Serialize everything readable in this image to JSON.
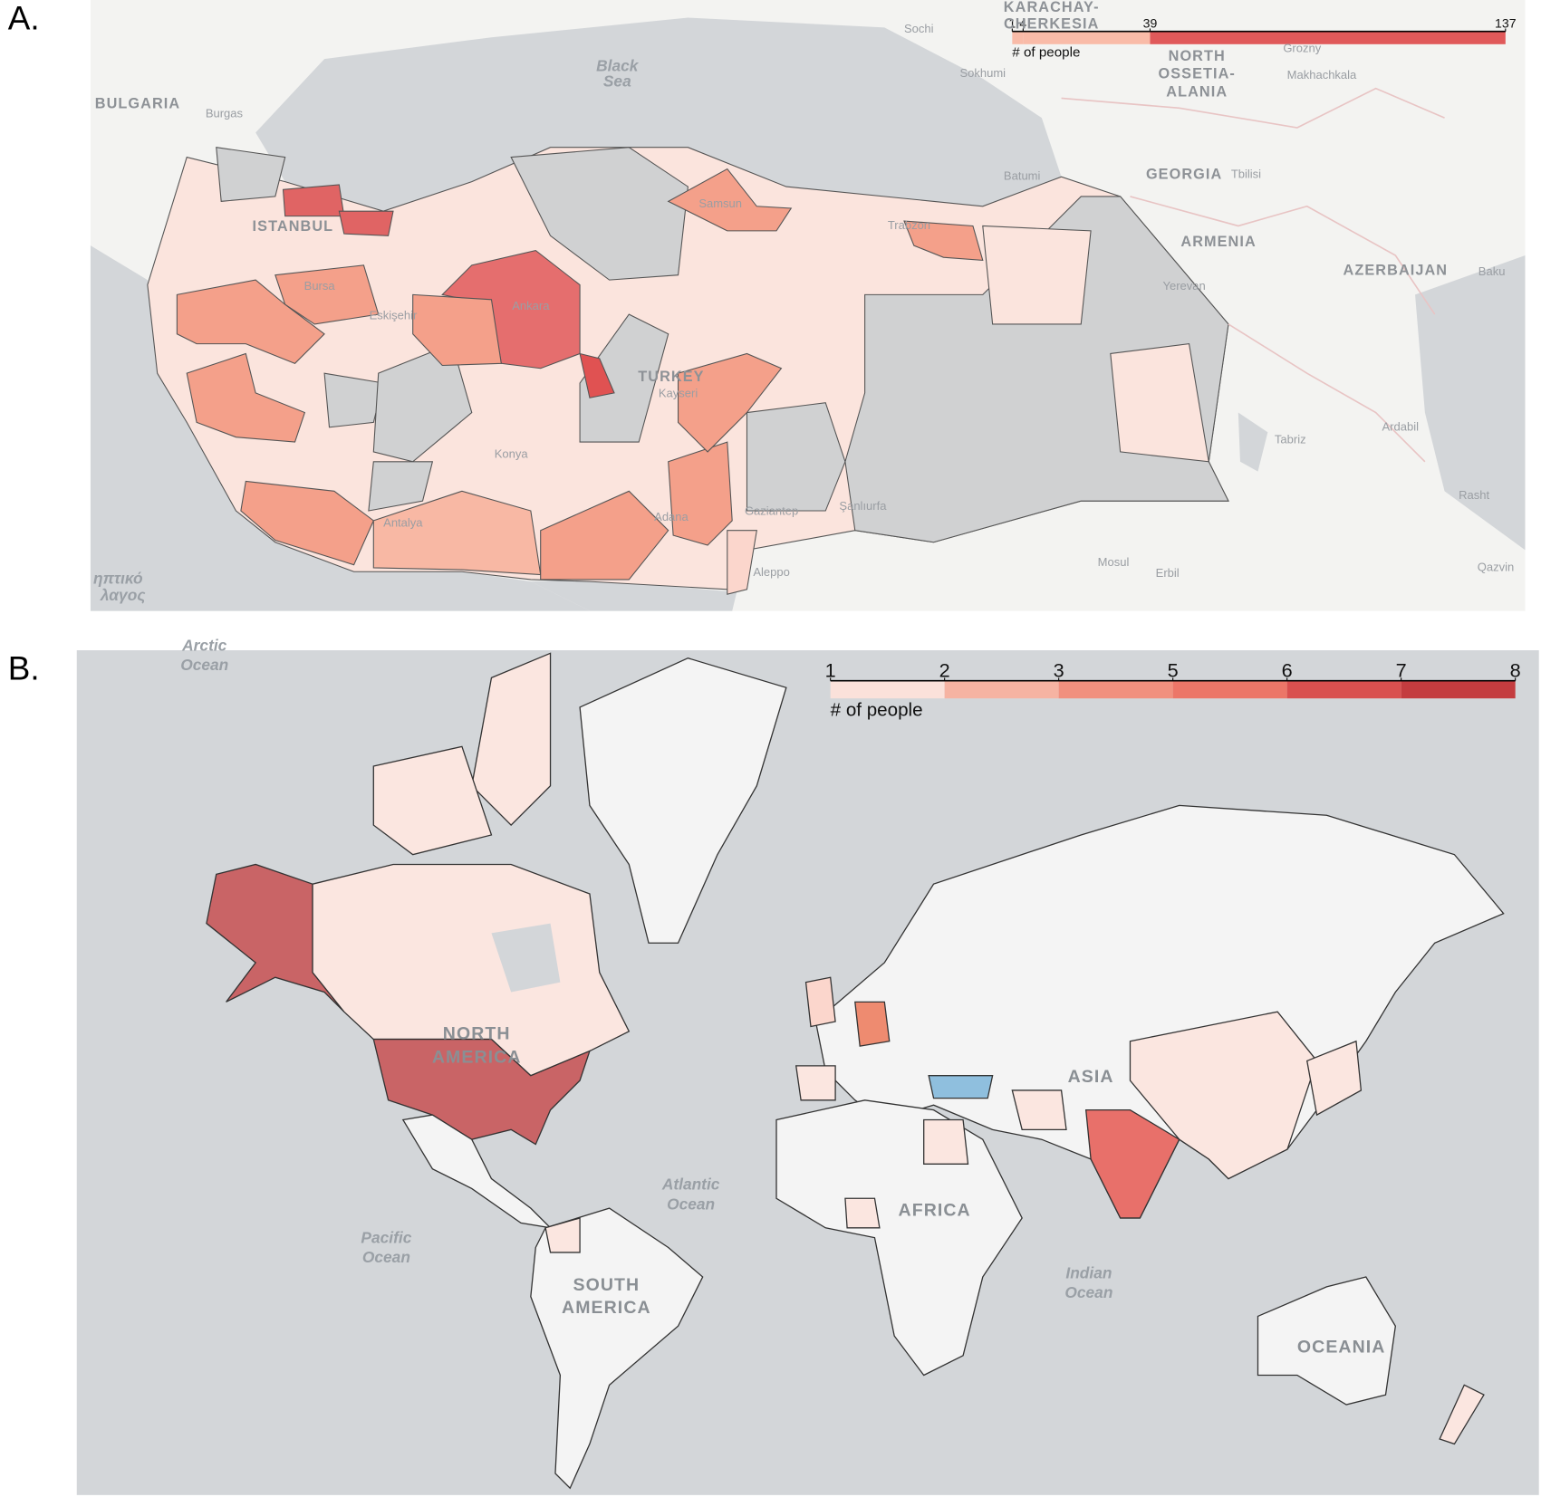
{
  "panel_a": {
    "label": "A.",
    "legend": {
      "title": "# of people",
      "ticks": [
        1,
        4,
        39,
        137
      ],
      "colors": [
        "#f9bba8",
        "#f9bba8",
        "#e0595a"
      ],
      "scale": "linear"
    },
    "places": [
      "KARACHAY-",
      "CHERKESIA",
      "Sochi",
      "Sokhumi",
      "Grozny",
      "Makhachkala",
      "NORTH",
      "OSSETIA-",
      "ALANIA",
      "Black",
      "Sea",
      "BULGARIA",
      "Burgas",
      "Batumi",
      "GEORGIA",
      "Tbilisi",
      "ARMENIA",
      "AZERBAIJAN",
      "Baku",
      "Yerevan",
      "ISTANBUL",
      "Samsun",
      "Trabzon",
      "Bursa",
      "Eskişehir",
      "Ankara",
      "TURKEY",
      "Kayseri",
      "Konya",
      "Tabriz",
      "Ardabil",
      "Rasht",
      "Antalya",
      "Adana",
      "Gaziantep",
      "Şanlıurfa",
      "Mosul",
      "Erbil",
      "Aleppo",
      "Qazvin",
      "ηπτικό",
      "λαγος"
    ]
  },
  "panel_b": {
    "label": "B.",
    "legend": {
      "title": "# of people",
      "ticks": [
        1,
        2,
        3,
        5,
        6,
        7,
        8
      ],
      "colors": [
        "#fbe1da",
        "#f6b3a2",
        "#f1907e",
        "#ec7668",
        "#d9504f",
        "#c43c3f"
      ],
      "scale": "even"
    },
    "places": [
      "Arctic",
      "Ocean",
      "NORTH",
      "AMERICA",
      "Atlantic",
      "Ocean",
      "Pacific",
      "Ocean",
      "SOUTH",
      "AMERICA",
      "AFRICA",
      "ASIA",
      "Indian",
      "Ocean",
      "OCEANIA"
    ]
  }
}
